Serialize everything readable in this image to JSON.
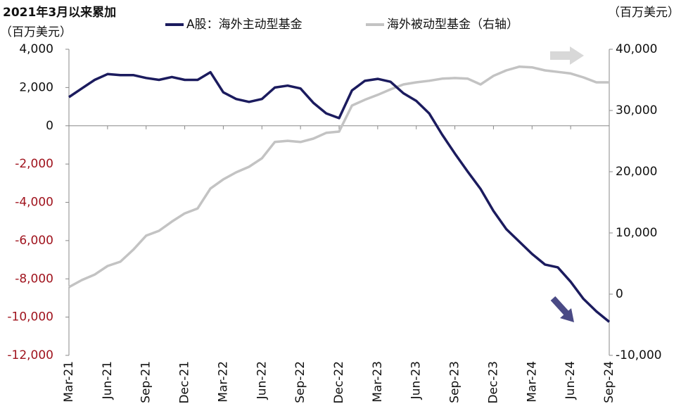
{
  "chart_data": {
    "type": "line",
    "title": "2021年3月以来累加",
    "ylabel": "（百万美元）",
    "y2label": "（百万美元）",
    "categories": [
      "Mar-21",
      null,
      null,
      "Jun-21",
      null,
      null,
      "Sep-21",
      null,
      null,
      "Dec-21",
      null,
      null,
      "Mar-22",
      null,
      null,
      "Jun-22",
      null,
      null,
      "Sep-22",
      null,
      null,
      "Dec-22",
      null,
      null,
      "Mar-23",
      null,
      null,
      "Jun-23",
      null,
      null,
      "Sep-23",
      null,
      null,
      "Dec-23",
      null,
      null,
      "Mar-24",
      null,
      null,
      "Jun-24",
      null,
      null,
      "Sep-24"
    ],
    "series": [
      {
        "name": "A股：海外主动型基金",
        "color": "#1b1b5e",
        "axis": "y",
        "values": [
          1500,
          1950,
          2400,
          2700,
          2650,
          2650,
          2500,
          2400,
          2550,
          2400,
          2400,
          2800,
          1750,
          1400,
          1250,
          1400,
          2000,
          2100,
          1950,
          1200,
          650,
          400,
          1850,
          2350,
          2450,
          2300,
          1700,
          1300,
          650,
          -450,
          -1450,
          -2400,
          -3300,
          -4450,
          -5400,
          -6050,
          -6700,
          -7250,
          -7400,
          -8150,
          -9050,
          -9700,
          -10250
        ]
      },
      {
        "name": "海外被动型基金（右轴）",
        "color": "#c3c3c3",
        "axis": "y2",
        "values": [
          1150,
          2300,
          3200,
          4600,
          5300,
          7250,
          9550,
          10350,
          11850,
          13200,
          14000,
          17250,
          18750,
          19900,
          20800,
          22200,
          24850,
          25050,
          24850,
          25400,
          26350,
          26550,
          30800,
          31750,
          32550,
          33450,
          34250,
          34600,
          34850,
          35200,
          35300,
          35200,
          34250,
          35650,
          36550,
          37150,
          37050,
          36550,
          36300,
          36050,
          35400,
          34600,
          34600
        ]
      }
    ],
    "ylim": [
      -12000,
      4000
    ],
    "yticks": [
      {
        "value": 4000,
        "label": "4,000"
      },
      {
        "value": 2000,
        "label": "2,000"
      },
      0,
      {
        "value": -2000,
        "label": "-2,000"
      },
      {
        "value": -4000,
        "label": "-4,000"
      },
      {
        "value": -6000,
        "label": "-6,000"
      },
      {
        "value": -8000,
        "label": "-8,000"
      },
      {
        "value": -10000,
        "label": "-10,000"
      },
      {
        "value": -12000,
        "label": "-12,000"
      }
    ],
    "y2lim": [
      -10000,
      40000
    ],
    "y2ticks": [
      {
        "value": 40000,
        "label": "40,000"
      },
      {
        "value": 30000,
        "label": "30,000"
      },
      {
        "value": 20000,
        "label": "20,000"
      },
      {
        "value": 10000,
        "label": "10,000"
      },
      0,
      {
        "value": -10000,
        "label": "-10,000"
      }
    ],
    "ytick_negative_color": "#a0141e",
    "legend": "top"
  }
}
